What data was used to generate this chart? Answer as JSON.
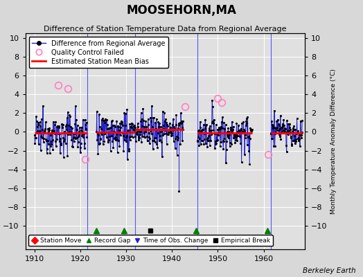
{
  "title": "MOOSEHORN,MA",
  "subtitle": "Difference of Station Temperature Data from Regional Average",
  "ylabel_right": "Monthly Temperature Anomaly Difference (°C)",
  "credit": "Berkeley Earth",
  "xlim": [
    1908.0,
    1969.0
  ],
  "ylim": [
    -12.5,
    10.5
  ],
  "yticks": [
    -10,
    -8,
    -6,
    -4,
    -2,
    0,
    2,
    4,
    6,
    8,
    10
  ],
  "xticks": [
    1910,
    1920,
    1930,
    1940,
    1950,
    1960
  ],
  "bg_color": "#d8d8d8",
  "plot_bg_color": "#e0e0e0",
  "grid_color": "white",
  "segments": [
    {
      "start": 1910.0,
      "end": 1921.5,
      "bias": -0.15
    },
    {
      "start": 1923.5,
      "end": 1932.0,
      "bias": -0.05
    },
    {
      "start": 1932.0,
      "end": 1942.5,
      "bias": 0.25
    },
    {
      "start": 1945.5,
      "end": 1957.5,
      "bias": -0.1
    },
    {
      "start": 1961.5,
      "end": 1968.5,
      "bias": -0.15
    }
  ],
  "vertical_lines": [
    1921.5,
    1932.0,
    1945.5,
    1961.5
  ],
  "record_gaps": [
    1923.5,
    1929.5,
    1945.3,
    1960.8
  ],
  "empirical_breaks": [
    1935.3
  ],
  "qc_fail_approx": [
    [
      1915.2,
      5.0
    ],
    [
      1917.3,
      4.6
    ],
    [
      1921.0,
      -2.9
    ],
    [
      1942.8,
      2.7
    ],
    [
      1950.0,
      3.6
    ],
    [
      1950.8,
      3.1
    ],
    [
      1961.0,
      -2.4
    ]
  ],
  "spike_x": 1941.5,
  "spike_y": -6.3,
  "marker_y": -10.5
}
